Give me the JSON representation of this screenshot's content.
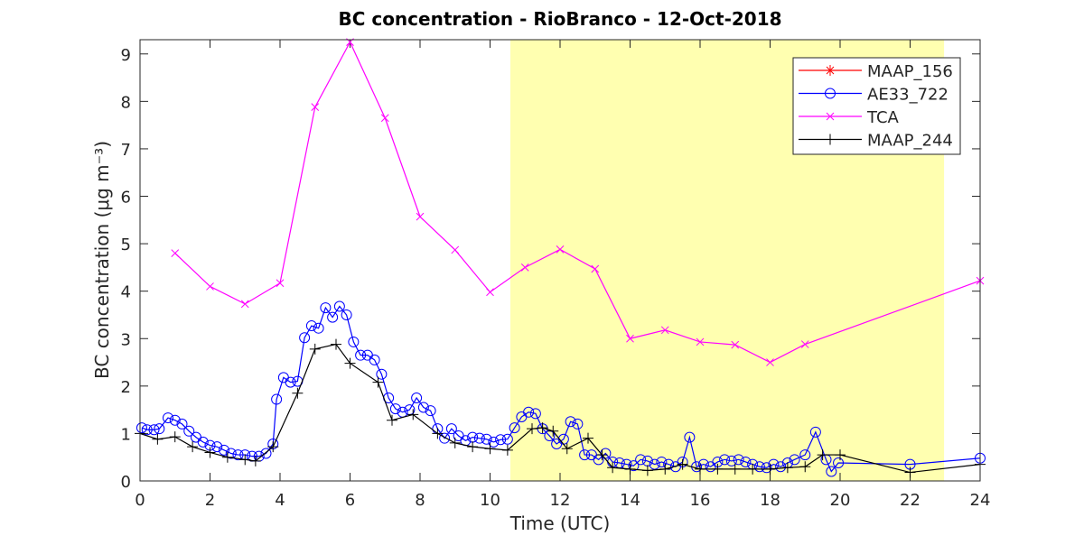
{
  "chart_data": {
    "type": "line",
    "title": "BC concentration  - RioBranco - 12-Oct-2018",
    "xlabel": "Time (UTC)",
    "ylabel": "BC concentration (μg m⁻³)",
    "xlim": [
      0,
      24
    ],
    "xticks": [
      0,
      2,
      4,
      6,
      8,
      10,
      12,
      14,
      16,
      18,
      20,
      22,
      24
    ],
    "ylim": [
      0,
      9.3
    ],
    "yticks": [
      0,
      1,
      2,
      3,
      4,
      5,
      6,
      7,
      8,
      9
    ],
    "shaded_region": {
      "x": [
        10.58,
        22.97
      ],
      "color": "#ffffb0"
    },
    "legend": "upper right",
    "series": [
      {
        "name": "MAAP_156",
        "color": "#ff0000",
        "marker": "star",
        "x": [],
        "values": []
      },
      {
        "name": "AE33_722",
        "color": "#0000ff",
        "marker": "circle",
        "x": [
          0.05,
          0.2,
          0.4,
          0.55,
          0.8,
          1.0,
          1.2,
          1.4,
          1.6,
          1.8,
          2.0,
          2.2,
          2.4,
          2.6,
          2.8,
          3.0,
          3.2,
          3.4,
          3.6,
          3.8,
          3.9,
          4.1,
          4.3,
          4.5,
          4.7,
          4.9,
          5.1,
          5.3,
          5.5,
          5.7,
          5.9,
          6.1,
          6.3,
          6.5,
          6.7,
          6.9,
          7.1,
          7.3,
          7.5,
          7.7,
          7.9,
          8.1,
          8.3,
          8.5,
          8.7,
          8.9,
          9.1,
          9.3,
          9.5,
          9.7,
          9.9,
          10.1,
          10.3,
          10.5,
          10.7,
          10.9,
          11.1,
          11.3,
          11.5,
          11.7,
          11.9,
          12.1,
          12.3,
          12.5,
          12.7,
          12.9,
          13.1,
          13.3,
          13.5,
          13.7,
          13.9,
          14.1,
          14.3,
          14.5,
          14.7,
          14.9,
          15.1,
          15.3,
          15.5,
          15.7,
          15.9,
          16.1,
          16.3,
          16.5,
          16.7,
          16.9,
          17.1,
          17.3,
          17.5,
          17.7,
          17.9,
          18.1,
          18.3,
          18.5,
          18.7,
          19.0,
          19.3,
          19.6,
          19.75,
          19.95,
          22,
          24
        ],
        "values": [
          1.12,
          1.08,
          1.08,
          1.1,
          1.33,
          1.28,
          1.2,
          1.05,
          0.92,
          0.82,
          0.75,
          0.72,
          0.65,
          0.58,
          0.55,
          0.55,
          0.52,
          0.52,
          0.58,
          0.78,
          1.72,
          2.18,
          2.08,
          2.1,
          3.02,
          3.27,
          3.22,
          3.65,
          3.45,
          3.68,
          3.5,
          2.93,
          2.65,
          2.65,
          2.55,
          2.25,
          1.75,
          1.52,
          1.45,
          1.5,
          1.75,
          1.55,
          1.48,
          1.1,
          0.9,
          1.1,
          0.95,
          0.85,
          0.92,
          0.9,
          0.88,
          0.82,
          0.87,
          0.88,
          1.12,
          1.35,
          1.45,
          1.42,
          1.1,
          0.95,
          0.78,
          0.88,
          1.25,
          1.2,
          0.55,
          0.55,
          0.45,
          0.58,
          0.4,
          0.38,
          0.35,
          0.32,
          0.45,
          0.42,
          0.35,
          0.4,
          0.35,
          0.3,
          0.4,
          0.92,
          0.3,
          0.35,
          0.3,
          0.4,
          0.45,
          0.42,
          0.45,
          0.4,
          0.35,
          0.3,
          0.28,
          0.35,
          0.3,
          0.38,
          0.45,
          0.55,
          1.03,
          0.45,
          0.2,
          0.38,
          0.35,
          0.48
        ]
      },
      {
        "name": "TCA",
        "color": "#ff00ff",
        "marker": "x",
        "x": [
          1,
          2,
          3,
          4,
          5,
          6,
          7,
          8,
          9,
          10,
          11,
          12,
          13,
          14,
          15,
          16,
          17,
          18,
          19,
          24
        ],
        "values": [
          4.8,
          4.1,
          3.73,
          4.17,
          7.88,
          9.25,
          7.65,
          5.57,
          4.87,
          3.98,
          4.5,
          4.88,
          4.47,
          3.0,
          3.18,
          2.93,
          2.87,
          2.5,
          2.88,
          4.22
        ]
      },
      {
        "name": "MAAP_244",
        "color": "#000000",
        "marker": "plus",
        "x": [
          0,
          0.5,
          1,
          1.5,
          2,
          2.5,
          3,
          3.3,
          3.8,
          4.5,
          5,
          5.6,
          6,
          6.8,
          7.2,
          7.8,
          8.5,
          9,
          9.5,
          10,
          10.5,
          11.2,
          11.5,
          11.8,
          12.2,
          12.8,
          13.2,
          13.5,
          14,
          14.5,
          15,
          15.5,
          16,
          16.5,
          17,
          17.5,
          18,
          18.5,
          19,
          19.5,
          20,
          22,
          24
        ],
        "values": [
          1.0,
          0.88,
          0.93,
          0.72,
          0.6,
          0.5,
          0.45,
          0.42,
          0.72,
          1.85,
          2.78,
          2.88,
          2.48,
          2.08,
          1.28,
          1.4,
          1.0,
          0.8,
          0.72,
          0.68,
          0.65,
          1.1,
          1.12,
          1.05,
          0.68,
          0.9,
          0.55,
          0.28,
          0.25,
          0.22,
          0.25,
          0.35,
          0.25,
          0.25,
          0.25,
          0.25,
          0.25,
          0.28,
          0.3,
          0.55,
          0.55,
          0.18,
          0.35
        ]
      }
    ]
  }
}
